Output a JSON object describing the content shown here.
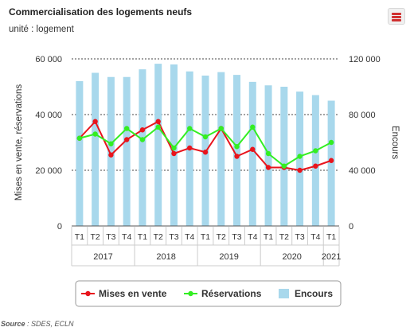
{
  "title": "Commercialisation des logements neufs",
  "subtitle": "unité : logement",
  "source_label": "Source",
  "source_text": " : SDES, ECLN",
  "chart_data": {
    "type": "bar+line",
    "categories": [
      "T1",
      "T2",
      "T3",
      "T4",
      "T1",
      "T2",
      "T3",
      "T4",
      "T1",
      "T2",
      "T3",
      "T4",
      "T1",
      "T2",
      "T3",
      "T4",
      "T1"
    ],
    "years": [
      {
        "label": "2017",
        "start": 0,
        "end": 3
      },
      {
        "label": "2018",
        "start": 4,
        "end": 7
      },
      {
        "label": "2019",
        "start": 8,
        "end": 11
      },
      {
        "label": "2020",
        "start": 12,
        "end": 15
      },
      {
        "label": "2021",
        "start": 16,
        "end": 16
      }
    ],
    "ylabel_left": "Mises en vente, réservations",
    "ylabel_right": "Encours",
    "ylim_left": [
      0,
      60000
    ],
    "ylim_right": [
      0,
      120000
    ],
    "yticks_left": [
      "0",
      "20 000",
      "40 000",
      "60 000"
    ],
    "yticks_right": [
      "0",
      "40 000",
      "80 000",
      "120 000"
    ],
    "legend_position": "bottom",
    "series": [
      {
        "name": "Encours",
        "type": "bar",
        "axis": "right",
        "color": "#a8d8ec",
        "values": [
          104000,
          110000,
          107000,
          107000,
          112500,
          116500,
          116000,
          111000,
          108000,
          110500,
          108500,
          103500,
          101000,
          100000,
          96500,
          94000,
          90000
        ]
      },
      {
        "name": "Mises en vente",
        "type": "line",
        "axis": "left",
        "color": "#e8141c",
        "values": [
          31500,
          37500,
          25500,
          31000,
          34500,
          37500,
          26000,
          28000,
          26500,
          35000,
          25000,
          27500,
          21000,
          21000,
          20000,
          21500,
          23500
        ]
      },
      {
        "name": "Réservations",
        "type": "line",
        "axis": "left",
        "color": "#33ee22",
        "values": [
          31500,
          33000,
          29500,
          35000,
          31000,
          35500,
          28000,
          35000,
          32000,
          35000,
          28500,
          35500,
          26000,
          21500,
          25000,
          27000,
          30000
        ]
      }
    ],
    "legend": [
      {
        "name": "Mises en vente",
        "color": "#e8141c",
        "kind": "line"
      },
      {
        "name": "Réservations",
        "color": "#33ee22",
        "kind": "line"
      },
      {
        "name": "Encours",
        "color": "#a8d8ec",
        "kind": "bar"
      }
    ]
  }
}
